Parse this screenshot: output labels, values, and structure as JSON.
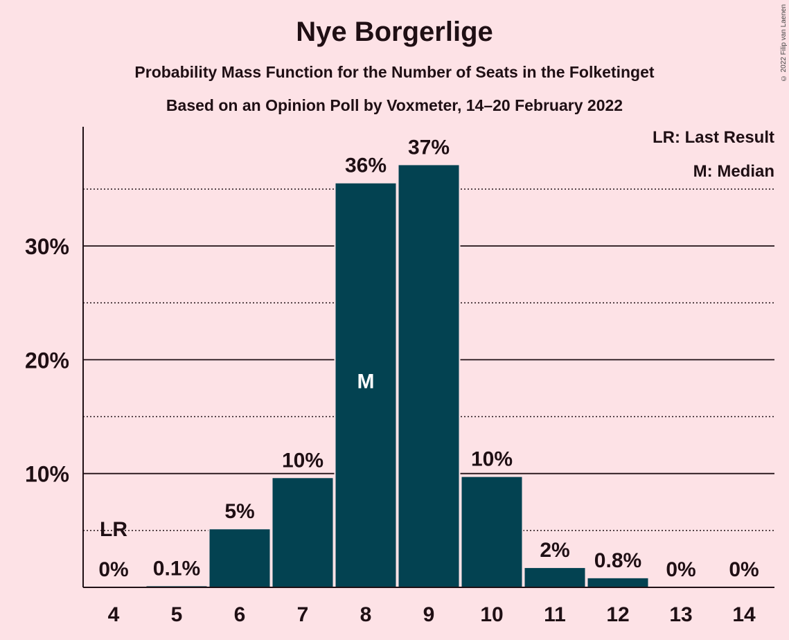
{
  "title": "Nye Borgerlige",
  "subtitle": "Probability Mass Function for the Number of Seats in the Folketinget",
  "subtitle2": "Based on an Opinion Poll by Voxmeter, 14–20 February 2022",
  "copyright": "© 2022 Filip van Laenen",
  "legend": {
    "last_result": "LR: Last Result",
    "median": "M: Median"
  },
  "colors": {
    "background": "#fde2e6",
    "bar": "#034251",
    "text": "#1f0f14"
  },
  "chart_data": {
    "type": "bar",
    "categories": [
      "4",
      "5",
      "6",
      "7",
      "8",
      "9",
      "10",
      "11",
      "12",
      "13",
      "14"
    ],
    "values": [
      0,
      0.1,
      5.1,
      9.6,
      35.5,
      37.1,
      9.7,
      1.7,
      0.8,
      0,
      0
    ],
    "value_labels": [
      "0%",
      "0.1%",
      "5%",
      "10%",
      "36%",
      "37%",
      "10%",
      "2%",
      "0.8%",
      "0%",
      "0%"
    ],
    "ylim": [
      0,
      40
    ],
    "yticks": [
      10,
      20,
      30
    ],
    "ytick_labels": [
      "10%",
      "20%",
      "30%"
    ],
    "minor_gridlines": [
      5,
      15,
      25,
      35
    ],
    "grid": true,
    "median_category": "8",
    "median_marker": "M",
    "last_result_category": "4",
    "last_result_marker": "LR",
    "last_result_value": 5,
    "legend_position": "top-right"
  }
}
